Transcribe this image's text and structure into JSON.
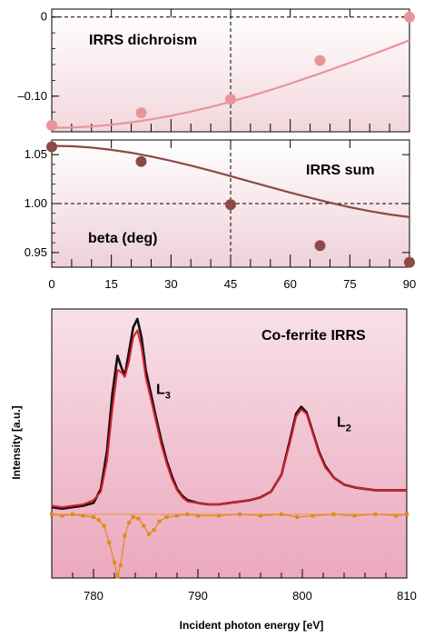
{
  "chart_data": [
    {
      "type": "scatter",
      "panel": "top",
      "title": "IRRS dichroism",
      "x_range": [
        0,
        90
      ],
      "ylim": [
        -0.145,
        0.01
      ],
      "x_ticks": [
        "0",
        "15",
        "30",
        "45",
        "60",
        "75",
        "90"
      ],
      "y_ticks": [
        {
          "value": 0,
          "label": "0"
        },
        {
          "value": -0.1,
          "label": "–0.10"
        }
      ],
      "reference_lines": [
        {
          "axis": "y",
          "value": 0,
          "style": "dashed"
        },
        {
          "axis": "x",
          "value": 45,
          "style": "dashed"
        }
      ],
      "series": [
        {
          "kind": "points",
          "color": "#e8949a",
          "x": [
            0,
            22.5,
            45,
            67.5,
            90
          ],
          "y": [
            -0.137,
            -0.121,
            -0.104,
            -0.055,
            0.0
          ]
        },
        {
          "kind": "fit-curve",
          "color": "#e8949a",
          "x": [
            0,
            5,
            10,
            15,
            20,
            25,
            30,
            35,
            40,
            45,
            50,
            55,
            60,
            65,
            70,
            75,
            80,
            85,
            90
          ],
          "y": [
            -0.14,
            -0.1396,
            -0.1383,
            -0.1361,
            -0.1331,
            -0.1293,
            -0.1248,
            -0.1195,
            -0.1136,
            -0.107,
            -0.0999,
            -0.0923,
            -0.0842,
            -0.0757,
            -0.0669,
            -0.0579,
            -0.0486,
            -0.0391,
            -0.0294
          ]
        }
      ]
    },
    {
      "type": "scatter",
      "panel": "middle",
      "title": "IRRS sum",
      "xlabel": "beta (deg)",
      "x_range": [
        0,
        90
      ],
      "ylim": [
        0.935,
        1.065
      ],
      "x_ticks": [
        "0",
        "15",
        "30",
        "45",
        "60",
        "75",
        "90"
      ],
      "y_ticks": [
        {
          "value": 1.05,
          "label": "1.05"
        },
        {
          "value": 1.0,
          "label": "1.00"
        },
        {
          "value": 0.95,
          "label": "0.95"
        }
      ],
      "reference_lines": [
        {
          "axis": "y",
          "value": 1.0,
          "style": "dashed"
        },
        {
          "axis": "x",
          "value": 45,
          "style": "dashed"
        }
      ],
      "series": [
        {
          "kind": "points",
          "color": "#8b4a45",
          "x": [
            0,
            22.5,
            45,
            67.5,
            90
          ],
          "y": [
            1.058,
            1.043,
            0.999,
            0.957,
            0.94
          ]
        },
        {
          "kind": "fit-curve",
          "color": "#8b4a45",
          "x": [
            0,
            5,
            10,
            15,
            20,
            25,
            30,
            35,
            40,
            45,
            50,
            55,
            60,
            65,
            70,
            75,
            80,
            85,
            90
          ],
          "y": [
            1.059,
            1.0586,
            1.0572,
            1.0549,
            1.0519,
            1.0481,
            1.0437,
            1.0388,
            1.0336,
            1.028,
            1.0224,
            1.0168,
            1.0112,
            1.0059,
            1.0009,
            0.9963,
            0.9923,
            0.9889,
            0.9862
          ]
        }
      ]
    },
    {
      "type": "line",
      "panel": "bottom",
      "title": "Co-ferrite IRRS",
      "xlabel": "Incident photon energy [eV]",
      "ylabel": "Intensity [a.u.]",
      "x_range": [
        776,
        810
      ],
      "ylim": [
        -0.45,
        1.45
      ],
      "x_ticks": [
        {
          "value": 780,
          "label": "780"
        },
        {
          "value": 790,
          "label": "790"
        },
        {
          "value": 800,
          "label": "800"
        },
        {
          "value": 810,
          "label": "810"
        }
      ],
      "annotations": [
        {
          "text": "L",
          "sub": "3",
          "x": 786.0,
          "y": 0.85
        },
        {
          "text": "L",
          "sub": "2",
          "x": 803.3,
          "y": 0.62
        }
      ],
      "series": [
        {
          "kind": "spectrum",
          "color": "#111111",
          "x": [
            776,
            777,
            778,
            779,
            780,
            780.7,
            781.3,
            781.8,
            782.3,
            782.7,
            783.0,
            783.4,
            783.8,
            784.2,
            784.6,
            785.0,
            785.5,
            786.0,
            786.5,
            787.0,
            787.5,
            788.0,
            788.5,
            789,
            790,
            791,
            792,
            793,
            794,
            795,
            796,
            797,
            798,
            798.8,
            799.4,
            799.9,
            800.4,
            801,
            801.6,
            802.2,
            803,
            804,
            805,
            806,
            807,
            808,
            809,
            810
          ],
          "y": [
            0.05,
            0.04,
            0.05,
            0.06,
            0.08,
            0.18,
            0.45,
            0.85,
            1.12,
            1.03,
            0.98,
            1.15,
            1.32,
            1.38,
            1.25,
            1.02,
            0.85,
            0.68,
            0.52,
            0.38,
            0.27,
            0.18,
            0.13,
            0.1,
            0.08,
            0.07,
            0.07,
            0.08,
            0.09,
            0.1,
            0.12,
            0.16,
            0.28,
            0.52,
            0.71,
            0.76,
            0.72,
            0.58,
            0.44,
            0.34,
            0.26,
            0.21,
            0.19,
            0.18,
            0.17,
            0.17,
            0.17,
            0.17
          ]
        },
        {
          "kind": "spectrum",
          "color": "#d8202a",
          "x": [
            776,
            777,
            778,
            779,
            780,
            780.7,
            781.3,
            781.8,
            782.3,
            782.7,
            783.0,
            783.4,
            783.8,
            784.2,
            784.6,
            785.0,
            785.5,
            786.0,
            786.5,
            787.0,
            787.5,
            788.0,
            788.5,
            789,
            790,
            791,
            792,
            793,
            794,
            795,
            796,
            797,
            798,
            798.8,
            799.4,
            799.9,
            800.4,
            801,
            801.6,
            802.2,
            803,
            804,
            805,
            806,
            807,
            808,
            809,
            810
          ],
          "y": [
            0.06,
            0.05,
            0.06,
            0.07,
            0.1,
            0.16,
            0.38,
            0.74,
            1.02,
            1.0,
            0.97,
            1.08,
            1.25,
            1.3,
            1.18,
            0.97,
            0.81,
            0.65,
            0.49,
            0.36,
            0.25,
            0.17,
            0.12,
            0.09,
            0.08,
            0.07,
            0.07,
            0.08,
            0.09,
            0.1,
            0.12,
            0.16,
            0.28,
            0.5,
            0.69,
            0.74,
            0.71,
            0.57,
            0.43,
            0.33,
            0.26,
            0.21,
            0.19,
            0.18,
            0.17,
            0.17,
            0.17,
            0.17
          ]
        },
        {
          "kind": "difference",
          "color": "#e08a1a",
          "x": [
            776,
            777,
            778,
            779,
            780,
            780.5,
            781,
            781.5,
            782,
            782.3,
            782.6,
            783.0,
            783.4,
            783.8,
            784.3,
            784.8,
            785.3,
            785.8,
            786.3,
            787,
            788,
            789,
            790,
            792,
            794,
            796,
            798,
            799.5,
            801,
            803,
            805,
            807,
            809,
            810
          ],
          "y": [
            0.0,
            -0.01,
            0.0,
            -0.01,
            -0.02,
            -0.04,
            -0.08,
            -0.2,
            -0.34,
            -0.44,
            -0.36,
            -0.15,
            -0.06,
            -0.02,
            -0.03,
            -0.08,
            -0.14,
            -0.11,
            -0.05,
            -0.02,
            -0.01,
            0.0,
            -0.01,
            -0.01,
            0.0,
            -0.01,
            0.0,
            -0.02,
            -0.01,
            0.0,
            -0.01,
            0.0,
            -0.01,
            0.0
          ]
        }
      ]
    }
  ]
}
